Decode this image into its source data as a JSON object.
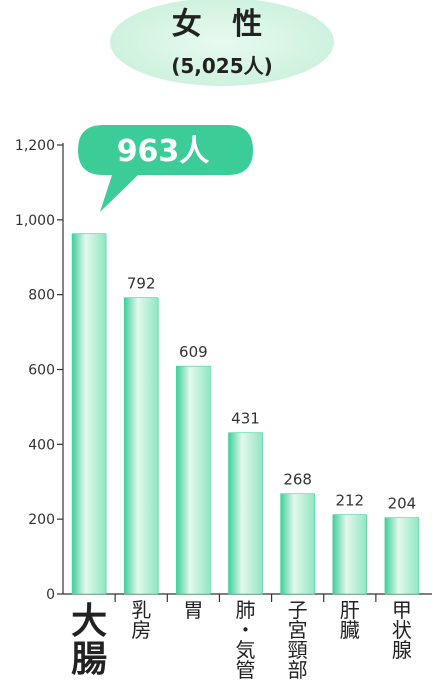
{
  "chart_data": {
    "type": "bar",
    "title": "女 性",
    "subtitle": "(5,025人)",
    "categories": [
      "大腸",
      "乳房",
      "胃",
      "肺・気管",
      "子宮頸部",
      "肝臓",
      "甲状腺"
    ],
    "values": [
      963,
      792,
      609,
      431,
      268,
      212,
      204
    ],
    "value_labels": [
      "",
      "792",
      "609",
      "431",
      "268",
      "212",
      "204"
    ],
    "highlight": {
      "index": 0,
      "label": "963人"
    },
    "ylim": [
      0,
      1200
    ],
    "yticks": [
      0,
      200,
      400,
      600,
      800,
      1000,
      1200
    ],
    "ytick_labels": [
      "0",
      "200",
      "400",
      "600",
      "800",
      "1,000",
      "1,200"
    ],
    "xlabel": "",
    "ylabel": "",
    "grid": false,
    "colors": {
      "bar_light": "#e4f8ec",
      "bar_mid": "#8fe6c2",
      "bar_edge": "#3fcf9c",
      "callout": "#3ccc97",
      "title_bubble": "#dff7ea"
    }
  }
}
